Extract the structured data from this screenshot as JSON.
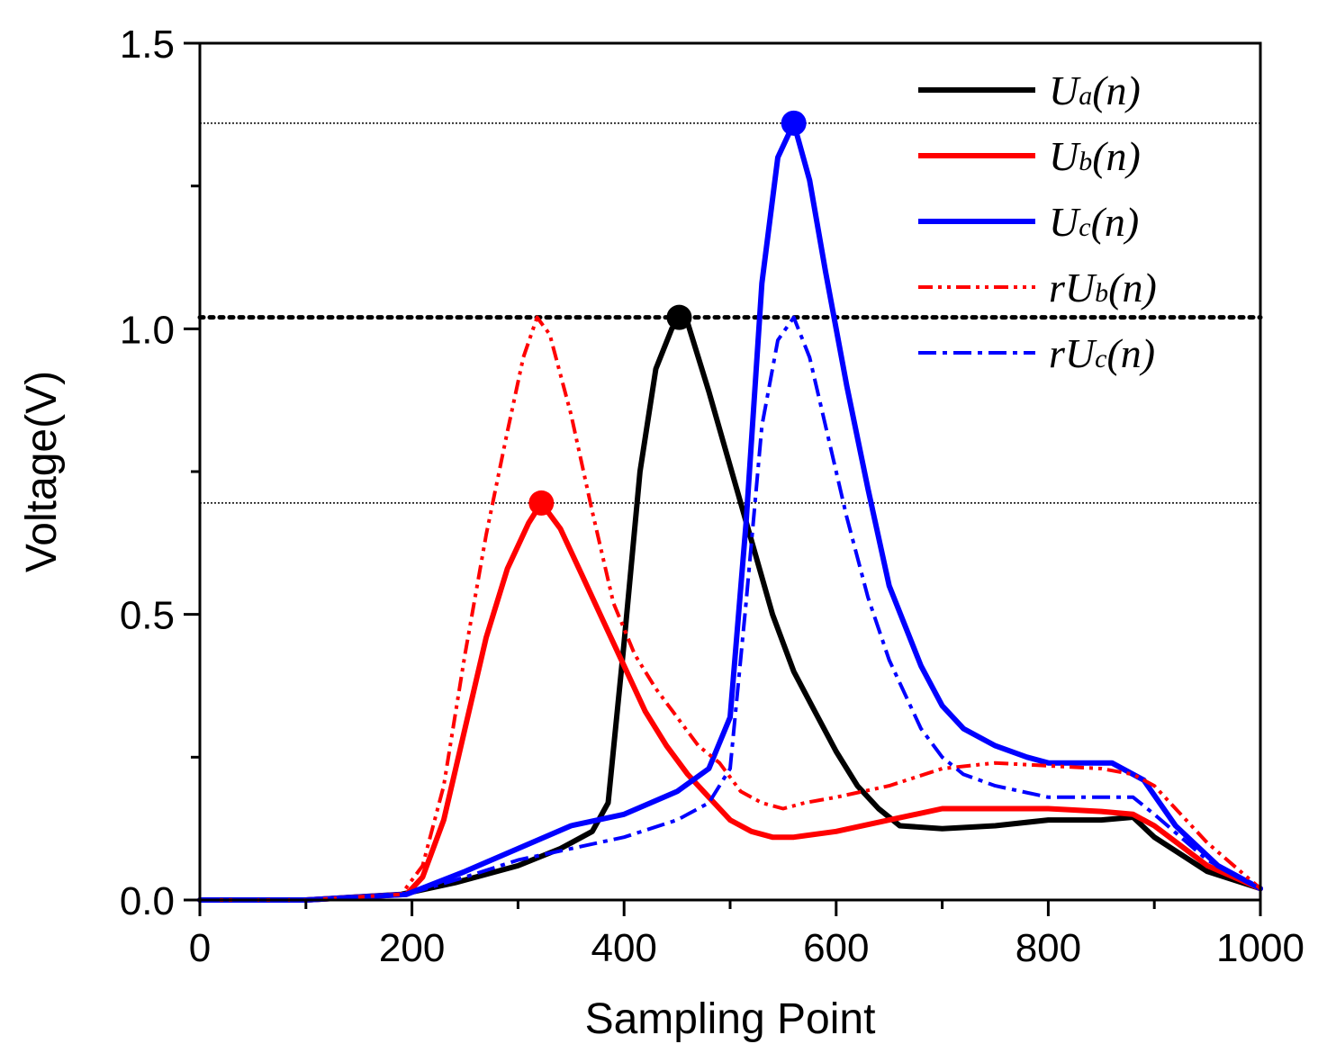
{
  "chart_data": {
    "type": "line",
    "title": "",
    "xlabel": "Sampling Point",
    "ylabel": "Voltage(V)",
    "xlim": [
      0,
      1000
    ],
    "ylim": [
      0,
      1.5
    ],
    "x_ticks": [
      0,
      200,
      400,
      600,
      800,
      1000
    ],
    "x_tick_labels": [
      "0",
      "200",
      "400",
      "600",
      "800",
      "1000"
    ],
    "y_ticks": [
      0.0,
      0.5,
      1.0,
      1.5
    ],
    "y_tick_labels": [
      "0.0",
      "0.5",
      "1.0",
      "1.5"
    ],
    "grid": false,
    "legend_position": "top-right",
    "reference_lines": [
      {
        "y": 1.36,
        "style": "thin-dotted"
      },
      {
        "y": 1.02,
        "style": "thick-dotted"
      },
      {
        "y": 0.695,
        "style": "thin-dotted"
      }
    ],
    "series": [
      {
        "name": "Ua(n)",
        "main": "U",
        "sub": "a",
        "suffix": "(n)",
        "color": "#000000",
        "style": "solid",
        "peak": {
          "x": 452,
          "y": 1.02
        },
        "x": [
          0,
          100,
          190,
          240,
          300,
          340,
          370,
          385,
          400,
          415,
          430,
          445,
          452,
          460,
          480,
          500,
          520,
          540,
          560,
          580,
          600,
          620,
          640,
          660,
          700,
          750,
          800,
          850,
          880,
          900,
          950,
          1000
        ],
        "values": [
          0,
          0,
          0.01,
          0.03,
          0.06,
          0.09,
          0.12,
          0.17,
          0.45,
          0.75,
          0.93,
          1.0,
          1.02,
          1.01,
          0.89,
          0.76,
          0.63,
          0.5,
          0.4,
          0.33,
          0.26,
          0.2,
          0.16,
          0.13,
          0.125,
          0.13,
          0.14,
          0.14,
          0.145,
          0.11,
          0.05,
          0.02
        ]
      },
      {
        "name": "Ub(n)",
        "main": "U",
        "sub": "b",
        "suffix": "(n)",
        "color": "#ff0000",
        "style": "solid",
        "peak": {
          "x": 322,
          "y": 0.695
        },
        "x": [
          0,
          100,
          195,
          210,
          230,
          250,
          270,
          290,
          310,
          322,
          340,
          360,
          380,
          400,
          420,
          440,
          460,
          480,
          500,
          520,
          540,
          560,
          600,
          650,
          700,
          750,
          800,
          850,
          880,
          900,
          950,
          1000
        ],
        "values": [
          0,
          0,
          0.01,
          0.04,
          0.14,
          0.3,
          0.46,
          0.58,
          0.66,
          0.695,
          0.65,
          0.57,
          0.49,
          0.41,
          0.33,
          0.27,
          0.22,
          0.18,
          0.14,
          0.12,
          0.11,
          0.11,
          0.12,
          0.14,
          0.16,
          0.16,
          0.16,
          0.155,
          0.15,
          0.13,
          0.06,
          0.02
        ]
      },
      {
        "name": "Uc(n)",
        "main": "U",
        "sub": "c",
        "suffix": "(n)",
        "color": "#0000ff",
        "style": "solid",
        "peak": {
          "x": 560,
          "y": 1.36
        },
        "x": [
          0,
          100,
          195,
          250,
          300,
          350,
          400,
          450,
          480,
          500,
          515,
          530,
          545,
          560,
          575,
          590,
          610,
          630,
          650,
          680,
          700,
          720,
          750,
          780,
          800,
          840,
          860,
          890,
          920,
          960,
          1000
        ],
        "values": [
          0,
          0,
          0.01,
          0.05,
          0.09,
          0.13,
          0.15,
          0.19,
          0.23,
          0.32,
          0.66,
          1.08,
          1.3,
          1.36,
          1.26,
          1.1,
          0.9,
          0.72,
          0.55,
          0.41,
          0.34,
          0.3,
          0.27,
          0.25,
          0.24,
          0.24,
          0.24,
          0.21,
          0.13,
          0.06,
          0.02
        ]
      },
      {
        "name": "rUb(n)",
        "main": "rU",
        "sub": "b",
        "suffix": "(n)",
        "color": "#ff0000",
        "style": "dash-dot-dot",
        "x": [
          0,
          100,
          190,
          210,
          230,
          250,
          270,
          290,
          305,
          318,
          330,
          350,
          370,
          390,
          410,
          430,
          450,
          470,
          490,
          510,
          530,
          550,
          570,
          600,
          650,
          700,
          750,
          800,
          850,
          880,
          900,
          950,
          1000
        ],
        "values": [
          0,
          0,
          0.01,
          0.06,
          0.2,
          0.43,
          0.64,
          0.82,
          0.95,
          1.02,
          0.99,
          0.85,
          0.68,
          0.52,
          0.43,
          0.37,
          0.32,
          0.27,
          0.24,
          0.19,
          0.17,
          0.16,
          0.17,
          0.18,
          0.2,
          0.23,
          0.24,
          0.235,
          0.23,
          0.22,
          0.2,
          0.1,
          0.02
        ]
      },
      {
        "name": "rUc(n)",
        "main": "rU",
        "sub": "c",
        "suffix": "(n)",
        "color": "#0000ff",
        "style": "dash-dot",
        "x": [
          0,
          100,
          195,
          250,
          300,
          350,
          400,
          450,
          480,
          500,
          515,
          530,
          545,
          560,
          575,
          590,
          610,
          630,
          650,
          680,
          700,
          720,
          750,
          800,
          850,
          880,
          900,
          950,
          1000
        ],
        "values": [
          0,
          0,
          0.01,
          0.04,
          0.07,
          0.09,
          0.11,
          0.14,
          0.17,
          0.23,
          0.52,
          0.83,
          0.98,
          1.02,
          0.95,
          0.83,
          0.67,
          0.53,
          0.42,
          0.3,
          0.25,
          0.22,
          0.2,
          0.18,
          0.18,
          0.18,
          0.15,
          0.07,
          0.02
        ]
      }
    ]
  }
}
